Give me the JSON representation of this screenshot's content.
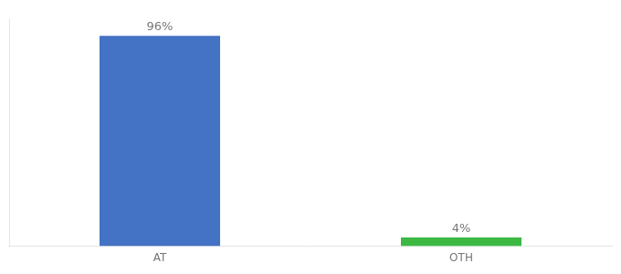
{
  "chart_data": {
    "type": "bar",
    "categories": [
      "AT",
      "OTH"
    ],
    "values": [
      96,
      4
    ],
    "value_labels": [
      "96%",
      "4%"
    ],
    "data_labels": true,
    "colors": [
      "#4472c4",
      "#3cb843"
    ],
    "ylim": [
      0,
      104
    ],
    "tick_labels": "x",
    "grid": false
  }
}
